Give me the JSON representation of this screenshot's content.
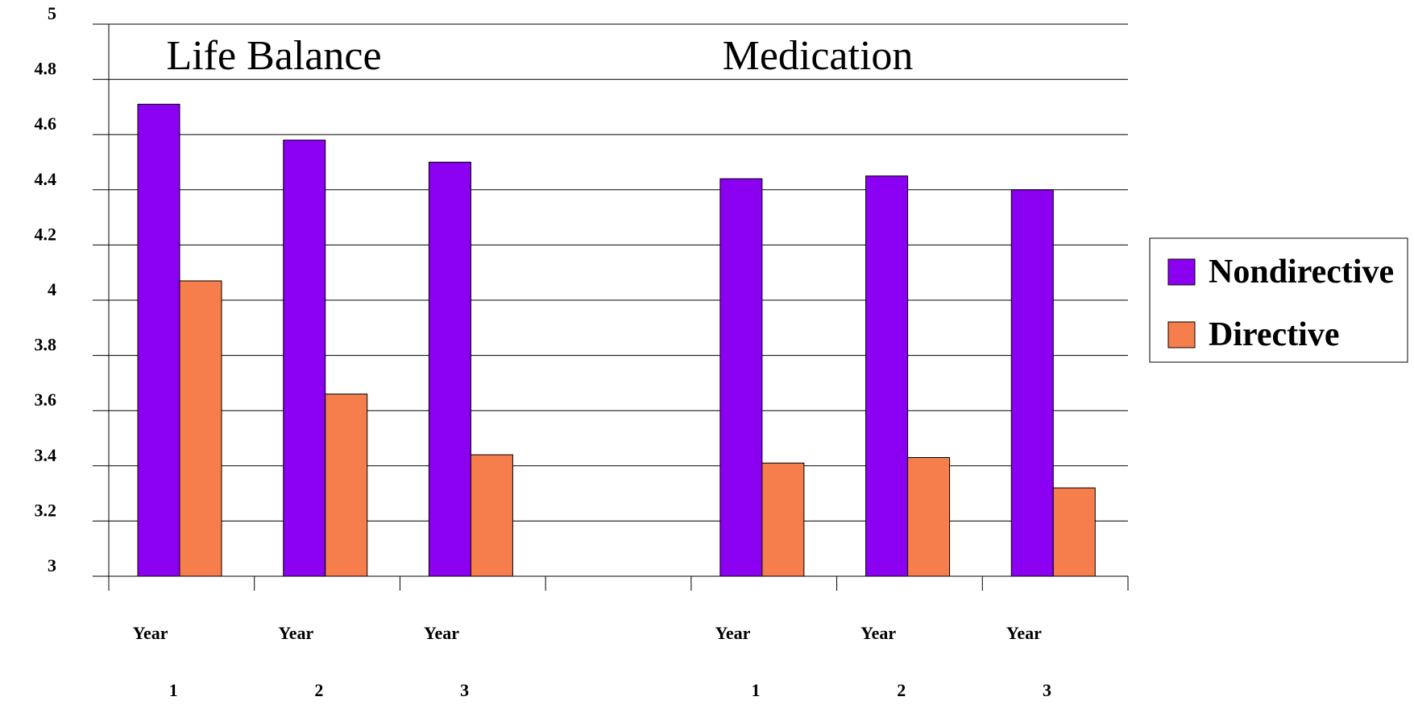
{
  "chart_data": {
    "type": "bar",
    "panels": [
      {
        "title": "Life Balance"
      },
      {
        "title": "Medication"
      }
    ],
    "categories": [
      {
        "line1": "Year",
        "line2": "1"
      },
      {
        "line1": "Year",
        "line2": "2"
      },
      {
        "line1": "Year",
        "line2": "3"
      },
      {
        "line1": "",
        "line2": ""
      },
      {
        "line1": "Year",
        "line2": "1"
      },
      {
        "line1": "Year",
        "line2": "2"
      },
      {
        "line1": "Year",
        "line2": "3"
      }
    ],
    "series": [
      {
        "name": "Nondirective",
        "color": "#8B00F0",
        "values": [
          4.71,
          4.58,
          4.5,
          null,
          4.44,
          4.45,
          4.4
        ]
      },
      {
        "name": "Directive",
        "color": "#F57E4C",
        "values": [
          4.07,
          3.66,
          3.44,
          null,
          3.41,
          3.43,
          3.32
        ]
      }
    ],
    "ylim": [
      3,
      5
    ],
    "yticks": [
      "3",
      "3.2",
      "3.4",
      "3.6",
      "3.8",
      "4",
      "4.2",
      "4.4",
      "4.6",
      "4.8",
      "5"
    ],
    "grid": true,
    "legend": "right"
  }
}
